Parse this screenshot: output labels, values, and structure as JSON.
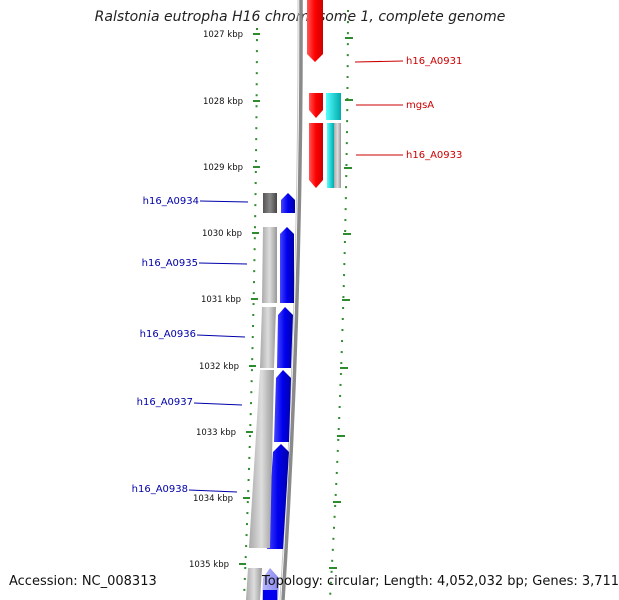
{
  "title": "Ralstonia eutropha H16 chromosome 1, complete genome",
  "accession": "Accession: NC_008313",
  "summary": "Topology: circular; Length: 4,052,032 bp; Genes: 3,711",
  "colors": {
    "forward_gene": "#ff0000",
    "reverse_gene": "#0000ff",
    "rna_feature": "#00cccc",
    "backbone": "#808080",
    "tick": "#2e8b2e",
    "forward_label": "#cc0000",
    "reverse_label": "#0000aa"
  },
  "scale": {
    "ticks": [
      {
        "label": "1027 kbp"
      },
      {
        "label": "1028 kbp"
      },
      {
        "label": "1029 kbp"
      },
      {
        "label": "1030 kbp"
      },
      {
        "label": "1031 kbp"
      },
      {
        "label": "1032 kbp"
      },
      {
        "label": "1033 kbp"
      },
      {
        "label": "1034 kbp"
      },
      {
        "label": "1035 kbp"
      }
    ]
  },
  "genes": [
    {
      "name": "h16_A0931",
      "strand": "forward"
    },
    {
      "name": "mgsA",
      "strand": "forward"
    },
    {
      "name": "h16_A0933",
      "strand": "forward"
    },
    {
      "name": "h16_A0934",
      "strand": "reverse"
    },
    {
      "name": "h16_A0935",
      "strand": "reverse"
    },
    {
      "name": "h16_A0936",
      "strand": "reverse"
    },
    {
      "name": "h16_A0937",
      "strand": "reverse"
    },
    {
      "name": "h16_A0938",
      "strand": "reverse"
    }
  ]
}
